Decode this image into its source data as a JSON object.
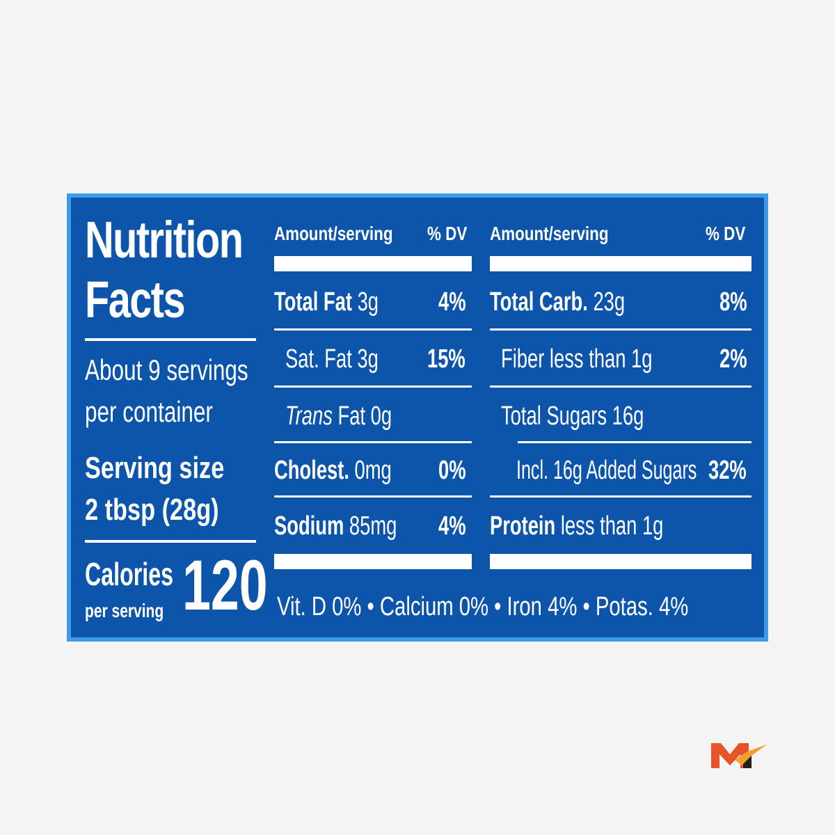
{
  "panel": {
    "title_line1": "Nutrition",
    "title_line2": "Facts",
    "servings_line1": "About 9 servings",
    "servings_line2": "per container",
    "serving_size_label": "Serving size",
    "serving_size_value": "2 tbsp (28g)",
    "calories_label": "Calories",
    "calories_sub": "per serving",
    "calories_value": "120"
  },
  "left": {
    "header_amount": "Amount/serving",
    "header_dv": "% DV",
    "rows": [
      {
        "name": "Total Fat",
        "amount": "3g",
        "dv": "4%"
      },
      {
        "name": "Sat. Fat 3g",
        "amount": "",
        "dv": "15%"
      },
      {
        "name": "Trans",
        "amount": "Fat 0g",
        "dv": ""
      },
      {
        "name": "Cholest.",
        "amount": "0mg",
        "dv": "0%"
      },
      {
        "name": "Sodium",
        "amount": "85mg",
        "dv": "4%"
      }
    ]
  },
  "right": {
    "header_amount": "Amount/serving",
    "header_dv": "% DV",
    "rows": [
      {
        "name": "Total Carb.",
        "amount": "23g",
        "dv": "8%"
      },
      {
        "name": "Fiber less than 1g",
        "amount": "",
        "dv": "2%"
      },
      {
        "name": "Total Sugars 16g",
        "amount": "",
        "dv": ""
      },
      {
        "name": "Incl. 16g Added Sugars",
        "amount": "",
        "dv": "32%"
      },
      {
        "name": "Protein",
        "amount": "less than 1g",
        "dv": ""
      }
    ]
  },
  "vitamins": "Vit. D 0% • Calcium 0% • Iron 4% • Potas. 4%",
  "colors": {
    "background": "#f4f4f4",
    "label_blue": "#0d55ab",
    "label_border": "#3f9be6",
    "logo_orange": "#e8542a",
    "logo_dark": "#2a1e1a"
  },
  "logo_icon": "m-check-logo-icon"
}
